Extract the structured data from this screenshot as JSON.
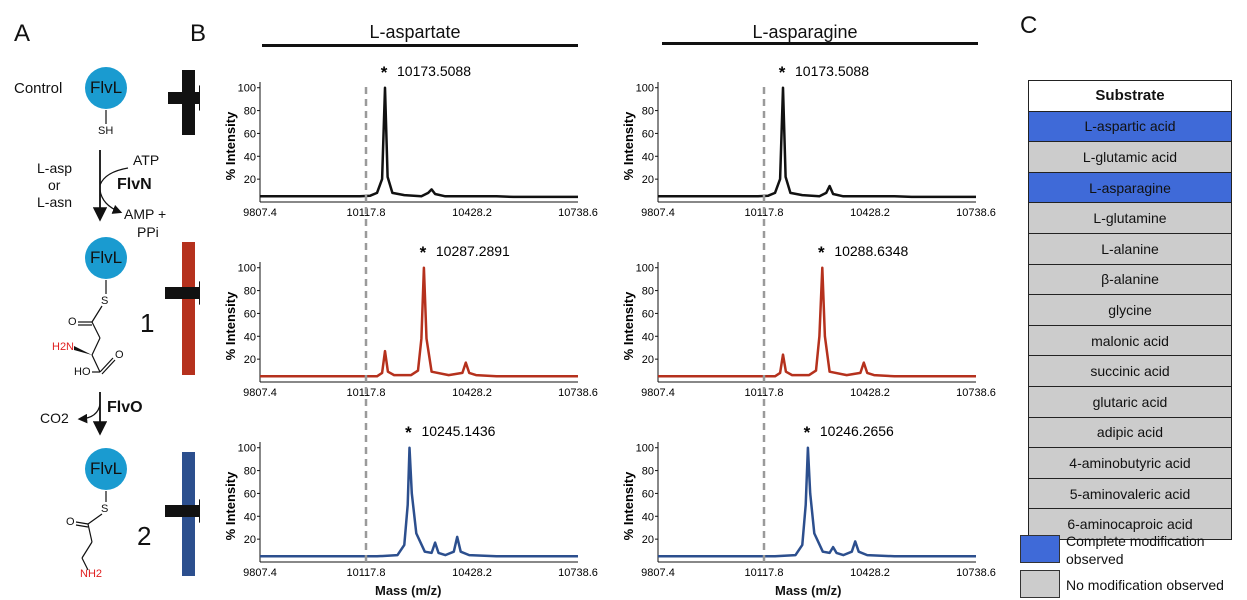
{
  "panels": {
    "a": "A",
    "b": "B",
    "c": "C"
  },
  "scheme": {
    "control_label": "Control",
    "protein": "FlvL",
    "thiol": "SH",
    "thio_s": "S",
    "substrate_line1": "L-asp",
    "substrate_line2": "or",
    "substrate_line3": "L-asn",
    "atp": "ATP",
    "enzyme1": "FlvN",
    "amp": "AMP +",
    "ppi": "PPi",
    "compound1_number": "1",
    "h2n": "H2N",
    "o_atom": "O",
    "ho": "HO",
    "co2": "CO2",
    "enzyme2": "FlvO",
    "compound2_number": "2",
    "nh2": "NH2",
    "colors": {
      "protein": "#1a9bd0",
      "amine": "#e01f1f",
      "control_bar": "#111111",
      "bar1": "#b5311d",
      "bar2": "#2c4f8e"
    }
  },
  "spectra": {
    "col_titles": [
      "L-aspartate",
      "L-asparagine"
    ],
    "y_axis_label": "% Intensity",
    "x_axis_label": "Mass (m/z)",
    "xlim": [
      9807.4,
      10738.6
    ],
    "ylim": [
      0,
      105
    ],
    "x_ticks": [
      "9807.4",
      "10117.8",
      "10428.2",
      "10738.6"
    ],
    "y_ticks": [
      "20",
      "40",
      "60",
      "80",
      "100"
    ],
    "star": "*",
    "dashed_ref_mass": 10117.8,
    "peak_labels": {
      "asp_control": "10173.5088",
      "asp_1": "10287.2891",
      "asp_2": "10245.1436",
      "asn_control": "10173.5088",
      "asn_1": "10288.6348",
      "asn_2": "10246.2656"
    }
  },
  "chart_data": [
    {
      "type": "line",
      "title": "L-aspartate",
      "xlabel": "Mass (m/z)",
      "ylabel": "% Intensity",
      "xlim": [
        9807.4,
        10738.6
      ],
      "ylim": [
        0,
        105
      ],
      "color": "#111111",
      "series": [
        {
          "x": [
            9807.4,
            10000,
            10100,
            10130,
            10150,
            10165,
            10173.5,
            10181,
            10195,
            10230,
            10280,
            10300,
            10310,
            10320,
            10350,
            10420,
            10450,
            10500,
            10550,
            10738.6
          ],
          "values": [
            5,
            5,
            5,
            5.5,
            8,
            20,
            100,
            22,
            8,
            6,
            5,
            8,
            11,
            7,
            5,
            5,
            5,
            5,
            4.5,
            4.5
          ]
        }
      ]
    },
    {
      "type": "line",
      "title": "L-aspartate",
      "xlabel": "Mass (m/z)",
      "ylabel": "% Intensity",
      "xlim": [
        9807.4,
        10738.6
      ],
      "ylim": [
        0,
        105
      ],
      "color": "#b5311d",
      "series": [
        {
          "x": [
            9807.4,
            10000,
            10150,
            10165,
            10173.5,
            10182,
            10200,
            10250,
            10270,
            10280,
            10287.3,
            10295,
            10310,
            10360,
            10400,
            10410,
            10420,
            10440,
            10500,
            10738.6
          ],
          "values": [
            5,
            5,
            5,
            8,
            27,
            9,
            6,
            6,
            10,
            38,
            100,
            38,
            9,
            6,
            8,
            17,
            8,
            6,
            5,
            5
          ]
        }
      ]
    },
    {
      "type": "line",
      "title": "L-aspartate",
      "xlabel": "Mass (m/z)",
      "ylabel": "% Intensity",
      "xlim": [
        9807.4,
        10738.6
      ],
      "ylim": [
        0,
        105
      ],
      "color": "#2c4f8e",
      "series": [
        {
          "x": [
            9807.4,
            10000,
            10150,
            10210,
            10230,
            10240,
            10245.1,
            10252,
            10265,
            10290,
            10310,
            10320,
            10330,
            10350,
            10375,
            10385,
            10395,
            10420,
            10500,
            10738.6
          ],
          "values": [
            5,
            5,
            5,
            6,
            15,
            50,
            100,
            60,
            25,
            9,
            8,
            17,
            8,
            6,
            9,
            22,
            9,
            6,
            5,
            5
          ]
        }
      ]
    },
    {
      "type": "line",
      "title": "L-asparagine",
      "xlabel": "Mass (m/z)",
      "ylabel": "% Intensity",
      "xlim": [
        9807.4,
        10738.6
      ],
      "ylim": [
        0,
        105
      ],
      "color": "#111111",
      "series": [
        {
          "x": [
            9807.4,
            10000,
            10100,
            10130,
            10150,
            10165,
            10173.5,
            10181,
            10195,
            10230,
            10280,
            10300,
            10310,
            10320,
            10350,
            10420,
            10450,
            10500,
            10550,
            10738.6
          ],
          "values": [
            5,
            5,
            5,
            5.5,
            8,
            20,
            100,
            22,
            8,
            6,
            5,
            8,
            14,
            7,
            5,
            5,
            5,
            5,
            4.5,
            4.5
          ]
        }
      ]
    },
    {
      "type": "line",
      "title": "L-asparagine",
      "xlabel": "Mass (m/z)",
      "ylabel": "% Intensity",
      "xlim": [
        9807.4,
        10738.6
      ],
      "ylim": [
        0,
        105
      ],
      "color": "#b5311d",
      "series": [
        {
          "x": [
            9807.4,
            10000,
            10150,
            10165,
            10173.5,
            10182,
            10200,
            10250,
            10270,
            10280,
            10288.6,
            10296,
            10310,
            10360,
            10400,
            10410,
            10420,
            10440,
            10500,
            10738.6
          ],
          "values": [
            5,
            5,
            5,
            8,
            24,
            9,
            6,
            6,
            10,
            40,
            100,
            40,
            9,
            6,
            8,
            17,
            8,
            6,
            5,
            5
          ]
        }
      ]
    },
    {
      "type": "line",
      "title": "L-asparagine",
      "xlabel": "Mass (m/z)",
      "ylabel": "% Intensity",
      "xlim": [
        9807.4,
        10738.6
      ],
      "ylim": [
        0,
        105
      ],
      "color": "#2c4f8e",
      "series": [
        {
          "x": [
            9807.4,
            10000,
            10150,
            10210,
            10230,
            10240,
            10246.3,
            10253,
            10265,
            10290,
            10310,
            10320,
            10330,
            10350,
            10375,
            10385,
            10395,
            10420,
            10500,
            10738.6
          ],
          "values": [
            5,
            5,
            5,
            6,
            15,
            50,
            100,
            60,
            25,
            9,
            8,
            13,
            8,
            6,
            9,
            18,
            9,
            6,
            5,
            5
          ]
        }
      ]
    }
  ],
  "table": {
    "header": "Substrate",
    "rows": [
      {
        "name": "L-aspartic acid",
        "status": "complete"
      },
      {
        "name": "L-glutamic acid",
        "status": "none"
      },
      {
        "name": "L-asparagine",
        "status": "complete"
      },
      {
        "name": "L-glutamine",
        "status": "none"
      },
      {
        "name": "L-alanine",
        "status": "none"
      },
      {
        "name": "β-alanine",
        "status": "none"
      },
      {
        "name": "glycine",
        "status": "none"
      },
      {
        "name": "malonic acid",
        "status": "none"
      },
      {
        "name": "succinic acid",
        "status": "none"
      },
      {
        "name": "glutaric acid",
        "status": "none"
      },
      {
        "name": "adipic acid",
        "status": "none"
      },
      {
        "name": "4-aminobutyric acid",
        "status": "none"
      },
      {
        "name": "5-aminovaleric acid",
        "status": "none"
      },
      {
        "name": "6-aminocaproic acid",
        "status": "none"
      }
    ],
    "colors": {
      "complete": "#3f6ad8",
      "none": "#cccccc"
    }
  },
  "legend": {
    "complete_line1": "Complete modification",
    "complete_line2": "observed",
    "none": "No modification observed"
  }
}
